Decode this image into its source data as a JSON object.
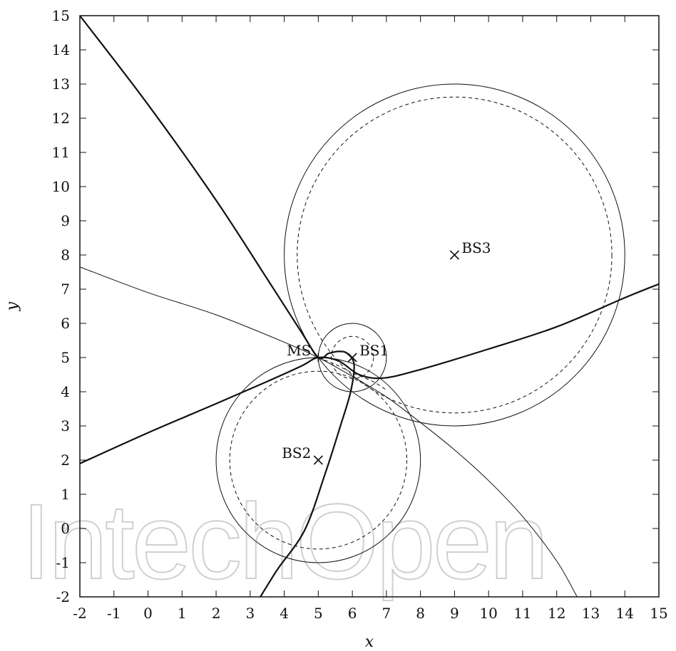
{
  "chart_data": {
    "type": "line",
    "xlabel": "x",
    "ylabel": "y",
    "xlim": [
      -2,
      15
    ],
    "ylim": [
      -2,
      15
    ],
    "x_ticks": [
      -2,
      -1,
      0,
      1,
      2,
      3,
      4,
      5,
      6,
      7,
      8,
      9,
      10,
      11,
      12,
      13,
      14,
      15
    ],
    "y_ticks": [
      -2,
      -1,
      0,
      1,
      2,
      3,
      4,
      5,
      6,
      7,
      8,
      9,
      10,
      11,
      12,
      13,
      14,
      15
    ],
    "grid": false,
    "legend": "none",
    "watermark": "IntechOpen",
    "points": [
      {
        "label": "MS",
        "x": 5,
        "y": 5,
        "marker": "+",
        "label_side": "left"
      },
      {
        "label": "BS1",
        "x": 6,
        "y": 5,
        "marker": "x",
        "label_side": "right"
      },
      {
        "label": "BS2",
        "x": 5,
        "y": 2,
        "marker": "x",
        "label_side": "left"
      },
      {
        "label": "BS3",
        "x": 9,
        "y": 8,
        "marker": "x",
        "label_side": "right"
      }
    ],
    "circles": [
      {
        "center": [
          6,
          5
        ],
        "radius": 1.0,
        "style": "solid"
      },
      {
        "center": [
          6,
          5
        ],
        "radius": 0.62,
        "style": "dashed"
      },
      {
        "center": [
          5,
          2
        ],
        "radius": 3.0,
        "style": "solid"
      },
      {
        "center": [
          5,
          2
        ],
        "radius": 2.6,
        "style": "dashed"
      },
      {
        "center": [
          9,
          8
        ],
        "radius": 5.0,
        "style": "solid"
      },
      {
        "center": [
          9,
          8
        ],
        "radius": 4.62,
        "style": "dashed"
      }
    ],
    "series": [
      {
        "style": "thick",
        "points": [
          [
            -2,
            15
          ],
          [
            0,
            12.4
          ],
          [
            2,
            9.6
          ],
          [
            3.5,
            7.3
          ],
          [
            4.5,
            5.75
          ],
          [
            5,
            5
          ],
          [
            5.3,
            5.12
          ],
          [
            5.6,
            5.18
          ],
          [
            5.85,
            5.12
          ],
          [
            6.05,
            4.8
          ],
          [
            5.95,
            4.0
          ],
          [
            5.65,
            3.0
          ],
          [
            5.2,
            1.6
          ],
          [
            4.6,
            -0.05
          ],
          [
            3.8,
            -1.2
          ],
          [
            3.3,
            -2
          ]
        ]
      },
      {
        "style": "thick",
        "points": [
          [
            -2,
            1.9
          ],
          [
            0,
            2.8
          ],
          [
            2,
            3.65
          ],
          [
            3.5,
            4.3
          ],
          [
            4.5,
            4.75
          ],
          [
            5,
            5
          ],
          [
            5.6,
            4.9
          ],
          [
            6.2,
            4.5
          ],
          [
            6.9,
            4.4
          ],
          [
            8,
            4.65
          ],
          [
            10,
            5.25
          ],
          [
            12,
            5.9
          ],
          [
            14,
            6.75
          ],
          [
            15,
            7.15
          ]
        ]
      },
      {
        "style": "thin",
        "points": [
          [
            -2,
            7.65
          ],
          [
            0,
            6.9
          ],
          [
            2,
            6.25
          ],
          [
            4,
            5.45
          ],
          [
            5,
            5
          ],
          [
            6,
            4.45
          ],
          [
            7,
            3.85
          ],
          [
            8,
            3.1
          ],
          [
            9,
            2.3
          ],
          [
            10,
            1.4
          ],
          [
            11,
            0.35
          ],
          [
            12,
            -0.95
          ],
          [
            12.6,
            -2
          ]
        ]
      },
      {
        "style": "dashed",
        "points": [
          [
            5,
            5
          ],
          [
            5.5,
            4.8
          ],
          [
            6,
            4.55
          ],
          [
            6.6,
            4.3
          ],
          [
            7.0,
            4.05
          ]
        ]
      }
    ]
  }
}
